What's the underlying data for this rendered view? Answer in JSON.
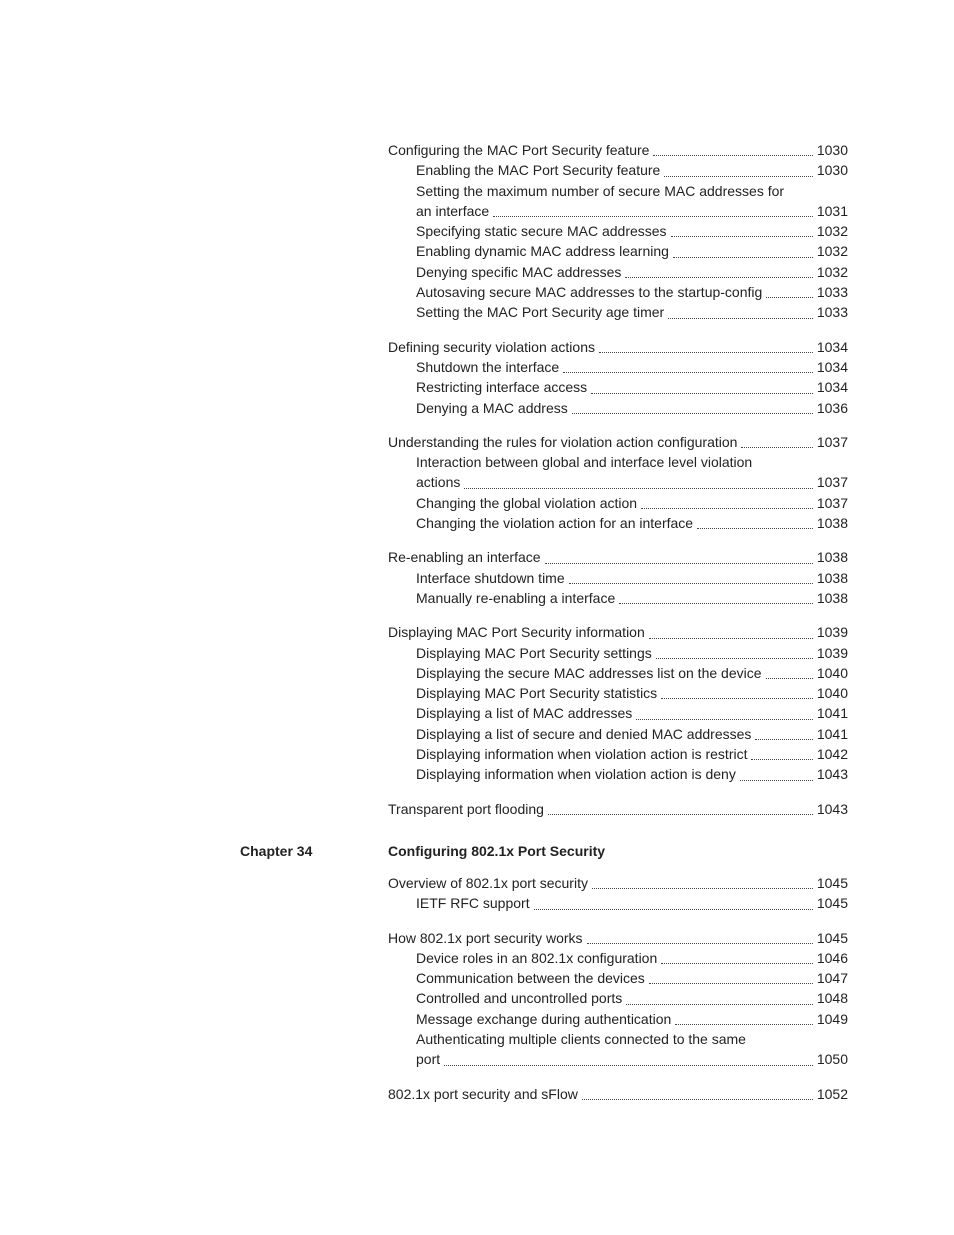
{
  "chapters": [
    {
      "label": "",
      "title": "",
      "title_shown": false,
      "groups": [
        {
          "entries": [
            {
              "level": 1,
              "text": "Configuring the MAC Port Security feature",
              "page": "1030"
            },
            {
              "level": 2,
              "text": "Enabling the MAC Port Security feature",
              "page": "1030"
            },
            {
              "level": 2,
              "text": "Setting the maximum number of secure MAC addresses for an interface",
              "page": "1031",
              "wrap_at": "Setting the maximum number of secure MAC addresses for"
            },
            {
              "level": 2,
              "text": "Specifying static secure MAC addresses",
              "page": "1032"
            },
            {
              "level": 2,
              "text": "Enabling dynamic MAC address learning",
              "page": "1032"
            },
            {
              "level": 2,
              "text": "Denying specific MAC addresses",
              "page": "1032"
            },
            {
              "level": 2,
              "text": "Autosaving secure MAC addresses to the startup-config",
              "page": "1033"
            },
            {
              "level": 2,
              "text": "Setting the MAC Port Security age timer",
              "page": "1033"
            }
          ]
        },
        {
          "entries": [
            {
              "level": 1,
              "text": "Defining security violation actions",
              "page": "1034"
            },
            {
              "level": 2,
              "text": "Shutdown the interface",
              "page": "1034"
            },
            {
              "level": 2,
              "text": "Restricting interface access",
              "page": "1034"
            },
            {
              "level": 2,
              "text": "Denying a MAC address",
              "page": "1036"
            }
          ]
        },
        {
          "entries": [
            {
              "level": 1,
              "text": "Understanding the rules for violation action configuration",
              "page": "1037"
            },
            {
              "level": 2,
              "text": "Interaction between global and interface level violation actions",
              "page": "1037",
              "wrap_at": "Interaction between global and interface level violation"
            },
            {
              "level": 2,
              "text": "Changing the global violation action",
              "page": "1037"
            },
            {
              "level": 2,
              "text": "Changing the violation action for an interface",
              "page": "1038"
            }
          ]
        },
        {
          "entries": [
            {
              "level": 1,
              "text": "Re-enabling an interface",
              "page": "1038"
            },
            {
              "level": 2,
              "text": "Interface shutdown time",
              "page": "1038"
            },
            {
              "level": 2,
              "text": "Manually re-enabling a interface",
              "page": "1038"
            }
          ]
        },
        {
          "entries": [
            {
              "level": 1,
              "text": "Displaying MAC Port Security information",
              "page": "1039"
            },
            {
              "level": 2,
              "text": "Displaying MAC Port Security settings",
              "page": "1039"
            },
            {
              "level": 2,
              "text": "Displaying the secure MAC addresses list on the device",
              "page": "1040"
            },
            {
              "level": 2,
              "text": "Displaying MAC Port Security statistics",
              "page": "1040"
            },
            {
              "level": 2,
              "text": "Displaying a list of MAC addresses",
              "page": "1041"
            },
            {
              "level": 2,
              "text": "Displaying a list of secure and denied MAC addresses",
              "page": "1041"
            },
            {
              "level": 2,
              "text": "Displaying information when violation action is restrict",
              "page": "1042"
            },
            {
              "level": 2,
              "text": "Displaying information when violation action is deny",
              "page": "1043"
            }
          ]
        },
        {
          "entries": [
            {
              "level": 1,
              "text": "Transparent port flooding",
              "page": "1043"
            }
          ]
        }
      ]
    },
    {
      "label": "Chapter 34",
      "title": "Configuring 802.1x Port Security",
      "title_shown": true,
      "groups": [
        {
          "entries": [
            {
              "level": 1,
              "text": "Overview of 802.1x port security",
              "page": "1045"
            },
            {
              "level": 2,
              "text": "IETF RFC support",
              "page": "1045"
            }
          ]
        },
        {
          "entries": [
            {
              "level": 1,
              "text": "How 802.1x port security works",
              "page": "1045"
            },
            {
              "level": 2,
              "text": "Device roles in an 802.1x configuration",
              "page": "1046"
            },
            {
              "level": 2,
              "text": "Communication between the devices",
              "page": "1047"
            },
            {
              "level": 2,
              "text": "Controlled and uncontrolled ports",
              "page": "1048"
            },
            {
              "level": 2,
              "text": "Message exchange during authentication",
              "page": "1049"
            },
            {
              "level": 2,
              "text": "Authenticating multiple clients connected to the same port",
              "page": "1050",
              "wrap_at": "Authenticating multiple clients connected to the same"
            }
          ]
        },
        {
          "entries": [
            {
              "level": 1,
              "text": "802.1x port security and sFlow",
              "page": "1052"
            }
          ]
        }
      ]
    }
  ]
}
